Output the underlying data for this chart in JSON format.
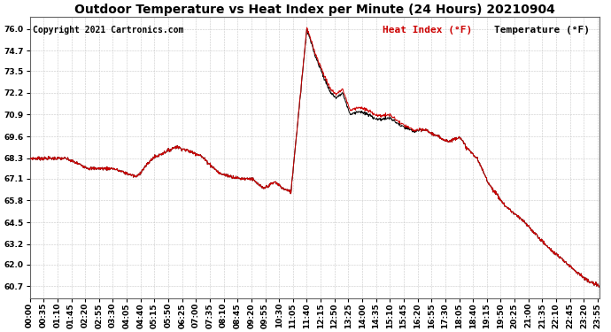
{
  "title": "Outdoor Temperature vs Heat Index per Minute (24 Hours) 20210904",
  "copyright": "Copyright 2021 Cartronics.com",
  "legend_heat": "Heat Index (°F)",
  "legend_temp": "Temperature (°F)",
  "heat_color": "#cc0000",
  "temp_color": "#000000",
  "background_color": "#ffffff",
  "grid_color": "#c8c8c8",
  "yticks": [
    60.7,
    62.0,
    63.2,
    64.5,
    65.8,
    67.1,
    68.3,
    69.6,
    70.9,
    72.2,
    73.5,
    74.7,
    76.0
  ],
  "ylim": [
    60.0,
    76.7
  ],
  "title_fontsize": 10,
  "copyright_fontsize": 7,
  "legend_fontsize": 8,
  "tick_label_fontsize": 6.5,
  "xtick_interval_minutes": 35,
  "figwidth": 6.9,
  "figheight": 3.75,
  "dpi": 100
}
